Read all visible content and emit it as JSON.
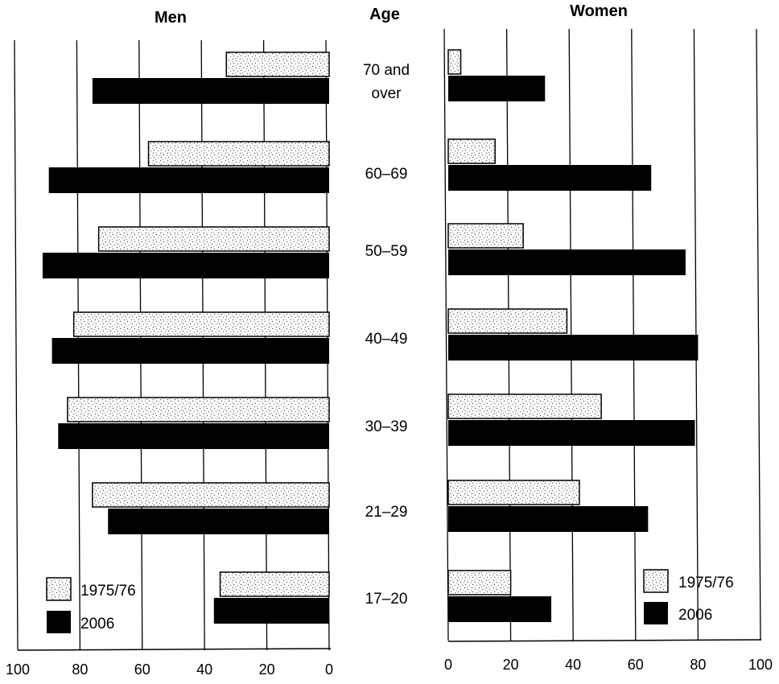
{
  "chart_data": [
    {
      "type": "bar",
      "orientation": "horizontal",
      "direction": "right-to-left",
      "title": "Men",
      "categories": [
        "70 and over",
        "60–69",
        "50–59",
        "40–49",
        "30–39",
        "21–29",
        "17–20"
      ],
      "series": [
        {
          "name": "1975/76",
          "pattern": "stipple",
          "values": [
            33,
            58,
            74,
            82,
            84,
            76,
            35
          ]
        },
        {
          "name": "2006",
          "color": "#000000",
          "values": [
            76,
            90,
            92,
            89,
            87,
            71,
            37
          ]
        }
      ],
      "xlim": [
        0,
        100
      ],
      "ticks": [
        "100",
        "80",
        "60",
        "40",
        "20",
        "0"
      ],
      "grid": true,
      "legend": "bottom-left"
    },
    {
      "type": "bar",
      "orientation": "horizontal",
      "title": "Women",
      "categories": [
        "70 and over",
        "60–69",
        "50–59",
        "40–49",
        "30–39",
        "21–29",
        "17–20"
      ],
      "series": [
        {
          "name": "1975/76",
          "pattern": "stipple",
          "values": [
            4,
            15,
            24,
            38,
            49,
            42,
            20
          ]
        },
        {
          "name": "2006",
          "color": "#000000",
          "values": [
            31,
            65,
            76,
            80,
            79,
            64,
            33
          ]
        }
      ],
      "xlim": [
        0,
        100
      ],
      "ticks": [
        "0",
        "20",
        "40",
        "60",
        "80",
        "100"
      ],
      "grid": true,
      "legend": "bottom-right"
    }
  ],
  "age_heading": "Age",
  "age_labels": [
    [
      "70 and",
      "over"
    ],
    [
      "60–69"
    ],
    [
      "50–59"
    ],
    [
      "40–49"
    ],
    [
      "30–39"
    ],
    [
      "21–29"
    ],
    [
      "17–20"
    ]
  ]
}
